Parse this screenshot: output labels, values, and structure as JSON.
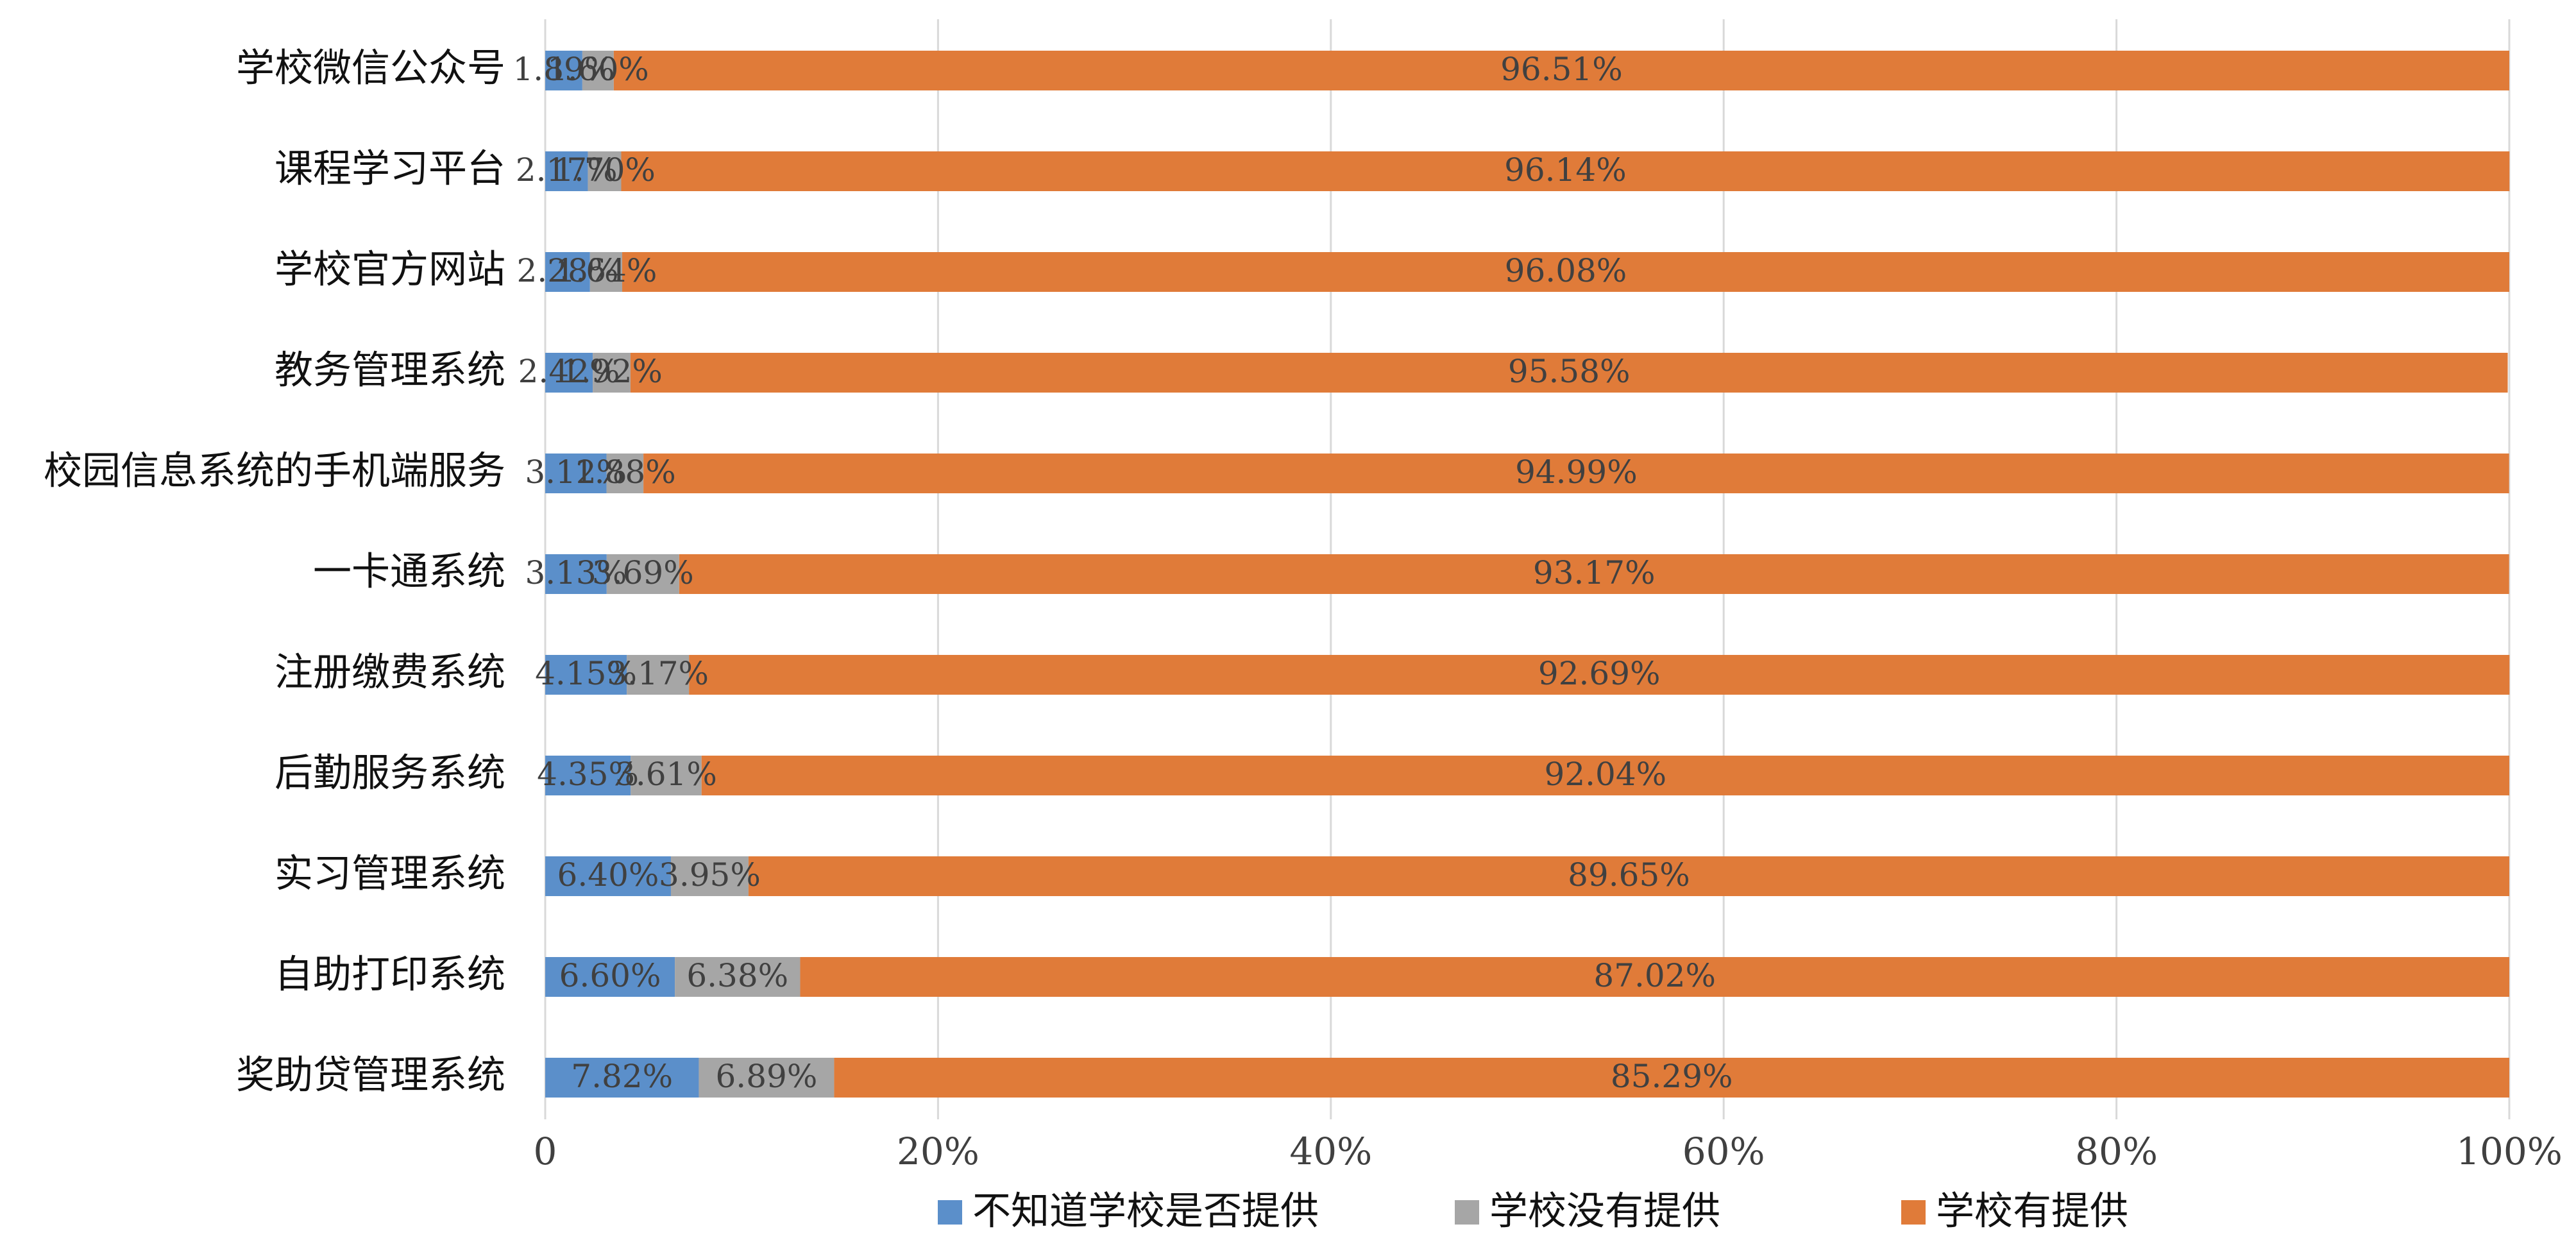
{
  "chart_data": {
    "type": "bar",
    "orientation": "horizontal",
    "stacked": "percent",
    "title": "",
    "xlabel": "",
    "ylabel": "",
    "xlim": [
      0,
      100
    ],
    "x_ticks": [
      "0",
      "20%",
      "40%",
      "60%",
      "80%",
      "100%"
    ],
    "grid": "vertical",
    "legend_position": "bottom",
    "categories": [
      "学校微信公众号",
      "课程学习平台",
      "学校官方网站",
      "教务管理系统",
      "校园信息系统的手机端服务",
      "一卡通系统",
      "注册缴费系统",
      "后勤服务系统",
      "实习管理系统",
      "自助打印系统",
      "奖助贷管理系统"
    ],
    "series": [
      {
        "name": "不知道学校是否提供",
        "color": "#5b8fca",
        "values": [
          1.89,
          2.17,
          2.28,
          2.42,
          3.12,
          3.13,
          4.15,
          4.35,
          6.4,
          6.6,
          7.82
        ],
        "labels": [
          "1.89%",
          "2.17%",
          "2.28%",
          "2.42%",
          "3.12%",
          "3.13%",
          "4.15%",
          "4.35%",
          "6.40%",
          "6.60%",
          "7.82%"
        ]
      },
      {
        "name": "学校没有提供",
        "color": "#a6a6a6",
        "values": [
          1.6,
          1.7,
          1.64,
          1.92,
          1.88,
          3.69,
          3.17,
          3.61,
          3.95,
          6.38,
          6.89
        ],
        "labels": [
          "1.60%",
          "1.70%",
          "1.64%",
          "1.92%",
          "1.88%",
          "3.69%",
          "3.17%",
          "3.61%",
          "3.95%",
          "6.38%",
          "6.89%"
        ]
      },
      {
        "name": "学校有提供",
        "color": "#e07b39",
        "values": [
          96.51,
          96.14,
          96.08,
          95.58,
          94.99,
          93.17,
          92.69,
          92.04,
          89.65,
          87.02,
          85.29
        ],
        "labels": [
          "96.51%",
          "96.14%",
          "96.08%",
          "95.58%",
          "94.99%",
          "93.17%",
          "92.69%",
          "92.04%",
          "89.65%",
          "87.02%",
          "85.29%"
        ]
      }
    ]
  }
}
